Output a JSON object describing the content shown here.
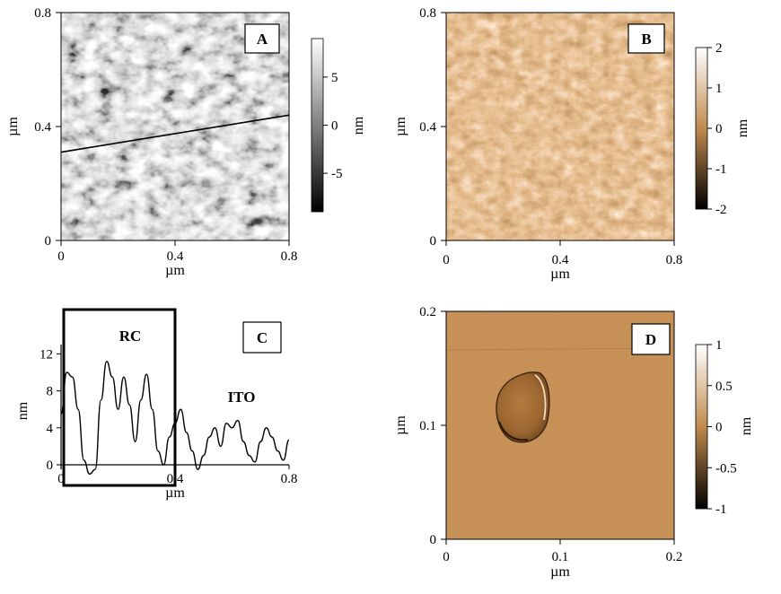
{
  "figure": {
    "panels": [
      {
        "id": "A",
        "label": "A",
        "image_kind": "grayscale-height-map",
        "x_ticks": [
          "0",
          "0.4",
          "0.8"
        ],
        "y_ticks": [
          "0",
          "0.4",
          "0.8"
        ],
        "x_unit": "µm",
        "y_unit": "µm",
        "colorbar": {
          "ticks": [
            "5",
            "0",
            "-5"
          ],
          "values": [
            5,
            0,
            -5
          ],
          "range": [
            -9,
            9
          ],
          "unit": "nm",
          "colors": [
            "#000000",
            "#ffffff"
          ]
        },
        "profile_line": {
          "from": [
            0,
            0.31
          ],
          "to": [
            0.8,
            0.44
          ]
        }
      },
      {
        "id": "B",
        "label": "B",
        "image_kind": "copper-phase-map",
        "x_ticks": [
          "0",
          "0.4",
          "0.8"
        ],
        "y_ticks": [
          "0",
          "0.4",
          "0.8"
        ],
        "x_unit": "µm",
        "y_unit": "µm",
        "colorbar": {
          "ticks": [
            "2",
            "1",
            "0",
            "-1",
            "-2"
          ],
          "values": [
            2,
            1,
            0,
            -1,
            -2
          ],
          "range": [
            -2,
            2
          ],
          "unit": "nm",
          "colors": [
            "#000000",
            "#c08a4e",
            "#ffffff"
          ]
        }
      },
      {
        "id": "C",
        "label": "C",
        "image_kind": "line-profile",
        "x_ticks": [
          "0",
          "0.4",
          "0.8"
        ],
        "y_ticks": [
          "0",
          "4",
          "8",
          "12"
        ],
        "x_unit": "µm",
        "y_unit": "nm",
        "annotations": {
          "rc": "RC",
          "ito": "ITO"
        }
      },
      {
        "id": "D",
        "label": "D",
        "image_kind": "copper-phase-map",
        "x_ticks": [
          "0",
          "0.1",
          "0.2"
        ],
        "y_ticks": [
          "0",
          "0.1",
          "0.2"
        ],
        "x_unit": "µm",
        "y_unit": "µm",
        "colorbar": {
          "ticks": [
            "1",
            "0.5",
            "0",
            "-0.5",
            "-1"
          ],
          "values": [
            1,
            0.5,
            0,
            -0.5,
            -1
          ],
          "range": [
            -1,
            1
          ],
          "unit": "nm",
          "colors": [
            "#000000",
            "#c08a4e",
            "#ffffff"
          ]
        }
      }
    ]
  },
  "chart_data": {
    "type": "line",
    "panel": "C",
    "x": [
      0.0,
      0.02,
      0.04,
      0.06,
      0.08,
      0.1,
      0.12,
      0.14,
      0.16,
      0.18,
      0.2,
      0.22,
      0.24,
      0.26,
      0.28,
      0.3,
      0.32,
      0.34,
      0.36,
      0.38,
      0.4,
      0.42,
      0.44,
      0.46,
      0.48,
      0.5,
      0.52,
      0.54,
      0.56,
      0.58,
      0.6,
      0.62,
      0.64,
      0.66,
      0.68,
      0.7,
      0.72,
      0.74,
      0.76,
      0.78,
      0.8
    ],
    "series": [
      {
        "values": [
          5.5,
          10.0,
          9.5,
          6.0,
          0.5,
          -1.0,
          -0.5,
          7.0,
          11.2,
          9.5,
          6.0,
          9.5,
          6.5,
          2.5,
          7.0,
          9.8,
          6.0,
          1.5,
          0.0,
          3.0,
          4.5,
          6.0,
          3.5,
          1.5,
          -0.5,
          1.0,
          3.0,
          4.0,
          2.0,
          4.5,
          4.0,
          4.8,
          2.5,
          1.0,
          0.3,
          2.5,
          4.0,
          3.0,
          1.5,
          0.5,
          2.7
        ]
      }
    ],
    "xlabel": "µm",
    "ylabel": "nm",
    "xlim": [
      0,
      0.8
    ],
    "ylim": [
      -1,
      14
    ],
    "grid": false,
    "annotations": [
      "RC",
      "ITO"
    ]
  }
}
